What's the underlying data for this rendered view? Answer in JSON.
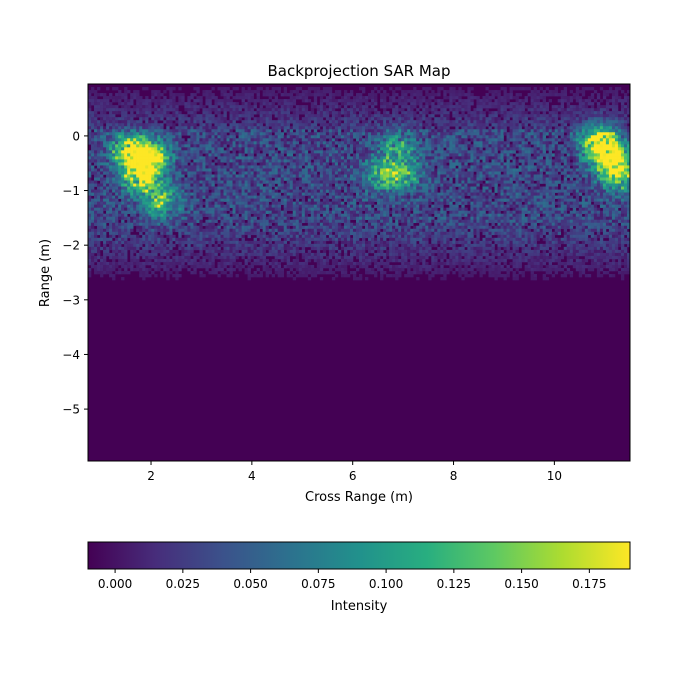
{
  "chart_data": {
    "type": "heatmap",
    "title": "Backprojection SAR Map",
    "xlabel": "Cross Range (m)",
    "ylabel": "Range (m)",
    "xlim": [
      0.75,
      11.5
    ],
    "ylim": [
      -5.95,
      0.95
    ],
    "x_ticks": [
      2,
      4,
      6,
      8,
      10
    ],
    "x_tick_labels": [
      "2",
      "4",
      "6",
      "8",
      "10"
    ],
    "y_ticks": [
      0,
      -1,
      -2,
      -3,
      -4,
      -5
    ],
    "y_tick_labels": [
      "0",
      "−1",
      "−2",
      "−3",
      "−4",
      "−5"
    ],
    "colormap": "viridis",
    "colorbar": {
      "label": "Intensity",
      "range": [
        -0.01,
        0.19
      ],
      "ticks": [
        0.0,
        0.025,
        0.05,
        0.075,
        0.1,
        0.125,
        0.15,
        0.175
      ],
      "tick_labels": [
        "0.000",
        "0.025",
        "0.050",
        "0.075",
        "0.100",
        "0.125",
        "0.150",
        "0.175"
      ],
      "orientation": "horizontal",
      "placement": "bottom"
    },
    "hotspots": [
      {
        "x": 1.6,
        "y": -0.3,
        "intensity": 0.19
      },
      {
        "x": 2.0,
        "y": -0.4,
        "intensity": 0.18
      },
      {
        "x": 1.8,
        "y": -0.75,
        "intensity": 0.16
      },
      {
        "x": 2.2,
        "y": -1.2,
        "intensity": 0.12
      },
      {
        "x": 6.6,
        "y": -0.7,
        "intensity": 0.1
      },
      {
        "x": 7.0,
        "y": -0.7,
        "intensity": 0.09
      },
      {
        "x": 6.9,
        "y": -0.2,
        "intensity": 0.08
      },
      {
        "x": 10.9,
        "y": -0.1,
        "intensity": 0.19
      },
      {
        "x": 11.1,
        "y": -0.4,
        "intensity": 0.17
      },
      {
        "x": 11.3,
        "y": -0.7,
        "intensity": 0.14
      }
    ],
    "band": {
      "y_range": [
        0.1,
        -1.5
      ],
      "mean_intensity": 0.04
    },
    "background_intensity": 0.0
  }
}
